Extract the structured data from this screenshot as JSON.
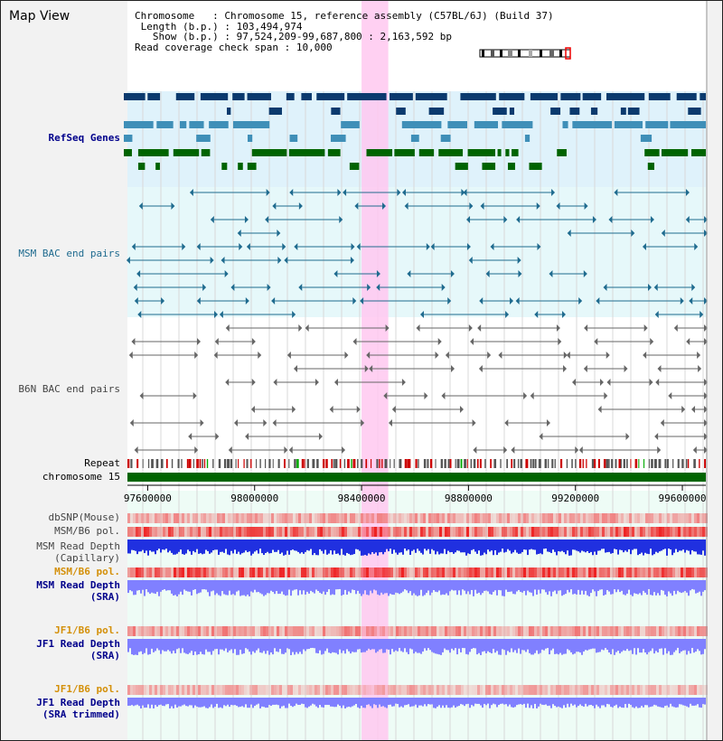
{
  "window": {
    "title": "Map View"
  },
  "info": {
    "chromosome_label": "Chromosome",
    "chromosome_value": "Chromosome 15, reference assembly (C57BL/6J) (Build 37)",
    "length_label": "Length (b.p.)",
    "length_value": "103,494,974",
    "show_label": "Show (b.p.)",
    "show_value": "97,524,209-99,687,800 : 2,163,592 bp",
    "coverage_label": "Read coverage check span",
    "coverage_value": "10,000"
  },
  "tracks": {
    "refseq": "RefSeq Genes",
    "msm_bac": "MSM BAC end pairs",
    "b6n_bac": "B6N BAC end pairs",
    "repeat": "Repeat",
    "chromosome": "chromosome 15",
    "dbsnp": "dbSNP(Mouse)",
    "msm_b6_pol_1": "MSM/B6 pol.",
    "msm_read_depth_cap_1": "MSM Read Depth",
    "msm_read_depth_cap_2": "(Capillary)",
    "msm_b6_pol_2": "MSM/B6 pol.",
    "msm_read_depth_sra_1": "MSM Read Depth",
    "msm_read_depth_sra_2": "(SRA)",
    "jf1_b6_pol_1": "JF1/B6 pol.",
    "jf1_read_depth_1": "JF1 Read Depth",
    "jf1_read_depth_2": "(SRA)",
    "jf1_b6_pol_2": "JF1/B6 pol.",
    "jf1_read_depth_trim_1": "JF1 Read Depth",
    "jf1_read_depth_trim_2": "(SRA trimmed)"
  },
  "axis": {
    "ticks": [
      "97600000",
      "98000000",
      "98400000",
      "98800000",
      "99200000",
      "99600000"
    ],
    "tick_values": [
      97600000,
      98000000,
      98400000,
      98800000,
      99200000,
      99600000
    ],
    "range": [
      97524209,
      99687800
    ]
  },
  "highlight": {
    "start": 98400000,
    "end": 98500000
  },
  "colors": {
    "refseq_dark": "#0b3a6e",
    "refseq_mid": "#3f8fb8",
    "refseq_green": "#006400",
    "bac_msm": "#1f6b8f",
    "bac_b6n": "#666666",
    "highlight": "#ffc8f0",
    "chromosome_bar": "#006400",
    "depth_blue": "#2030e0",
    "depth_light": "#8080ff",
    "pol_red": "#ee2222"
  }
}
